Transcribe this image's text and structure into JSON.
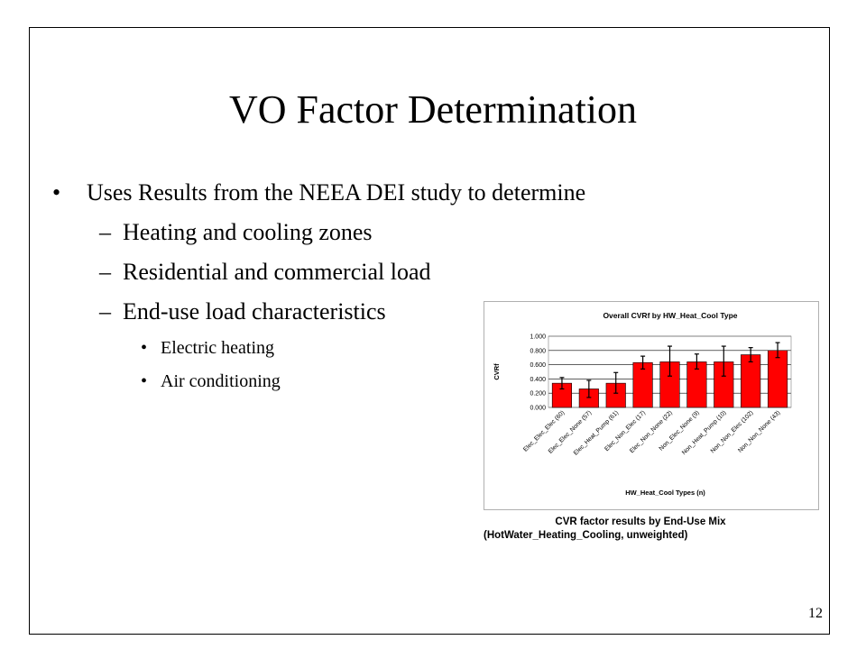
{
  "slide": {
    "title": "VO Factor Determination",
    "bullet": "Uses Results from the NEEA DEI study to determine",
    "sub_items": [
      "Heating and cooling zones",
      "Residential and commercial load",
      "End-use load characteristics"
    ],
    "sub_sub_items": [
      "Electric heating",
      "Air conditioning"
    ],
    "page_number": "12",
    "caption_line1": "CVR factor results by End-Use Mix",
    "caption_line2": "(HotWater_Heating_Cooling, unweighted)"
  },
  "chart_data": {
    "type": "bar",
    "title": "Overall CVRf by HW_Heat_Cool Type",
    "xlabel": "HW_Heat_Cool Types (n)",
    "ylabel": "CVRf",
    "ylim": [
      0,
      1.0
    ],
    "yticks": [
      "0.000",
      "0.200",
      "0.400",
      "0.600",
      "0.800",
      "1.000"
    ],
    "categories": [
      "Elec_Elec_Elec (60)",
      "Elec_Elec_None (57)",
      "Elec_Heat_Pump (61)",
      "Elec_Non_Elec (17)",
      "Elec_Non_None (22)",
      "Non_Elec_None (9)",
      "Non_Heat_Pump (10)",
      "Non_Non_Elec (102)",
      "Non_Non_None (43)"
    ],
    "values": [
      0.34,
      0.26,
      0.34,
      0.63,
      0.64,
      0.64,
      0.64,
      0.74,
      0.8
    ],
    "error_low": [
      0.26,
      0.14,
      0.2,
      0.54,
      0.44,
      0.54,
      0.44,
      0.64,
      0.7
    ],
    "error_high": [
      0.42,
      0.38,
      0.49,
      0.72,
      0.86,
      0.75,
      0.86,
      0.84,
      0.91
    ],
    "bar_color": "#ff0000",
    "grid": true,
    "legend": "none"
  }
}
